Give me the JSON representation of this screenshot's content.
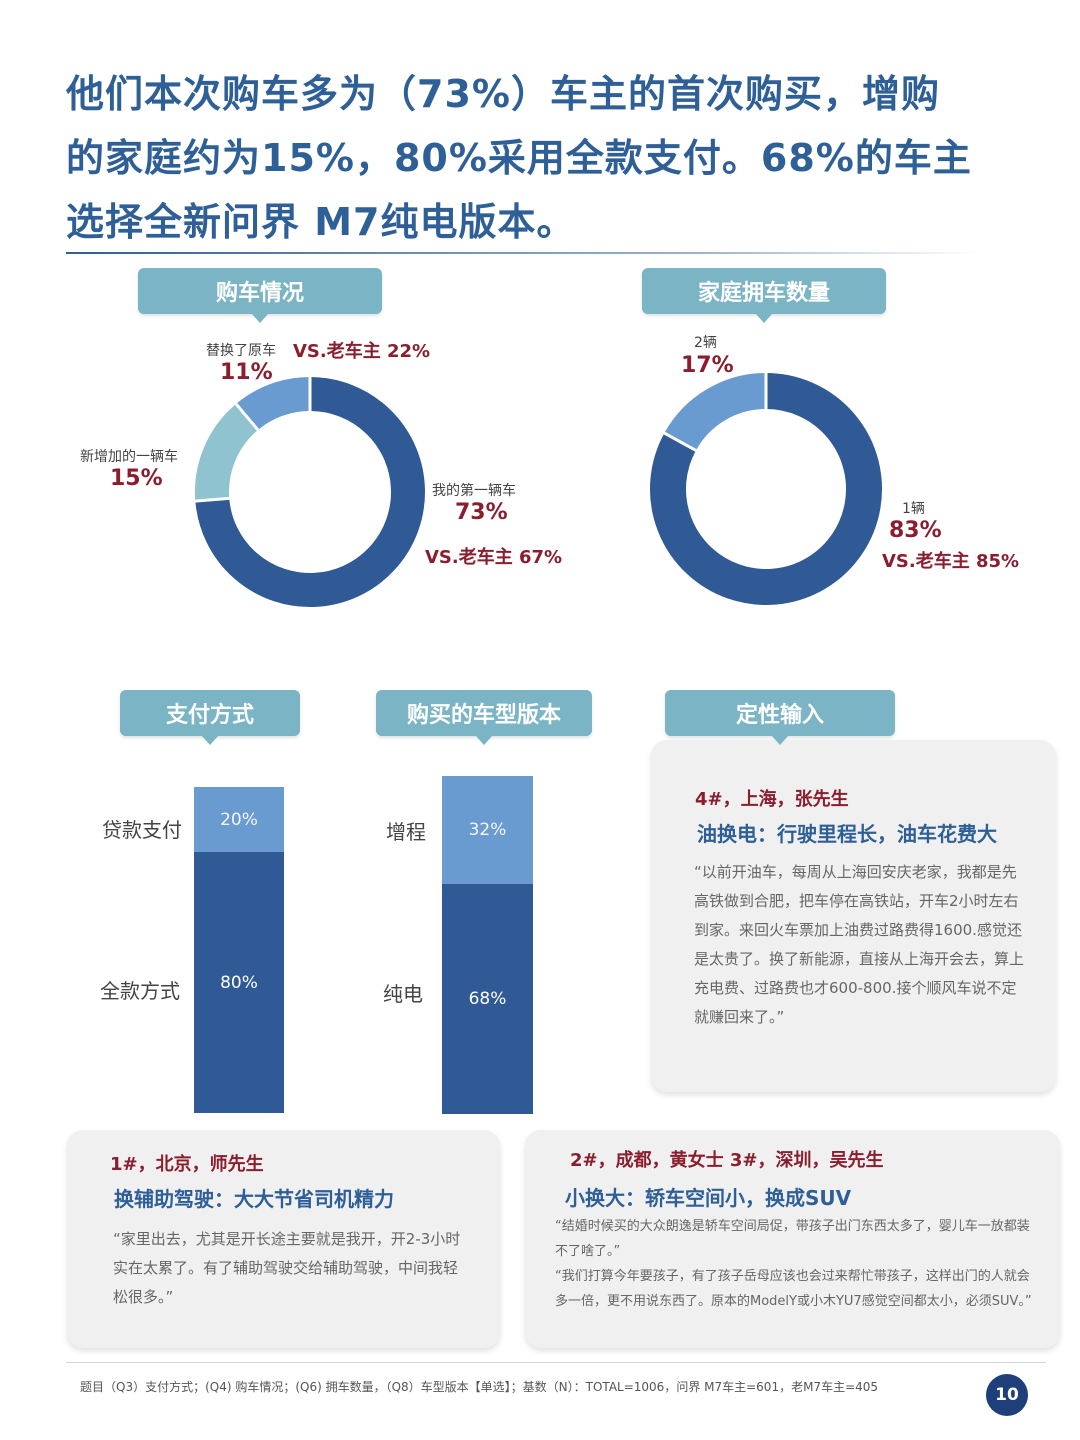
{
  "headline": {
    "line1": "他们本次购车多为（73%）车主的首次购买，增购",
    "line2": "的家庭约为15%，80%采用全款支付。68%的车主",
    "line3": "选择全新问界 M7纯电版本。"
  },
  "colors": {
    "dark_blue": "#2f5a96",
    "mid_blue": "#6a9bd0",
    "light_teal": "#8ec3cf",
    "accent_red": "#8a1d2e",
    "tab_teal": "#7ab4c5"
  },
  "sections": {
    "purchase": "购车情况",
    "household": "家庭拥车数量",
    "payment": "支付方式",
    "version": "购买的车型版本",
    "qualitative": "定性输入"
  },
  "chart_data": [
    {
      "type": "pie",
      "title": "购车情况",
      "slices": [
        {
          "label": "我的第一辆车",
          "value": 73,
          "display": "73%",
          "compare": "VS.老车主 67%",
          "color": "#2f5a96"
        },
        {
          "label": "新增加的一辆车",
          "value": 15,
          "display": "15%",
          "color": "#8ec3cf"
        },
        {
          "label": "替换了原车",
          "value": 11,
          "display": "11%",
          "compare": "VS.老车主 22%",
          "color": "#6a9bd0"
        }
      ]
    },
    {
      "type": "pie",
      "title": "家庭拥车数量",
      "slices": [
        {
          "label": "1辆",
          "value": 83,
          "display": "83%",
          "compare": "VS.老车主 85%",
          "color": "#2f5a96"
        },
        {
          "label": "2辆",
          "value": 17,
          "display": "17%",
          "color": "#6a9bd0"
        }
      ]
    },
    {
      "type": "bar",
      "title": "支付方式",
      "stacked": true,
      "categories": [
        "全款方式",
        "贷款支付"
      ],
      "values": [
        80,
        20
      ],
      "display": [
        "80%",
        "20%"
      ]
    },
    {
      "type": "bar",
      "title": "购买的车型版本",
      "stacked": true,
      "categories": [
        "纯电",
        "增程"
      ],
      "values": [
        68,
        32
      ],
      "display": [
        "68%",
        "32%"
      ]
    }
  ],
  "cards": {
    "shanghai": {
      "tag": "4#，上海，张先生",
      "headline": "油换电：行驶里程长，油车花费大",
      "quote": "“以前开油车，每周从上海回安庆老家，我都是先高铁做到合肥，把车停在高铁站，开车2小时左右到家。来回火车票加上油费过路费得1600.感觉还是太贵了。换了新能源，直接从上海开会去，算上充电费、过路费也才600-800.接个顺风车说不定就赚回来了。”"
    },
    "beijing": {
      "tag": "1#，北京，师先生",
      "headline": "换辅助驾驶：大大节省司机精力",
      "quote": "“家里出去，尤其是开长途主要就是我开，开2-3小时实在太累了。有了辅助驾驶交给辅助驾驶，中间我轻松很多。”"
    },
    "chengdu": {
      "tag": "2#，成都，黄女士    3#，深圳，吴先生",
      "headline": "小换大：轿车空间小，换成SUV",
      "quote1": "“结婚时候买的大众朗逸是轿车空间局促，带孩子出门东西太多了，婴儿车一放都装不了啥了。”",
      "quote2": "“我们打算今年要孩子，有了孩子岳母应该也会过来帮忙带孩子，这样出门的人就会多一倍，更不用说东西了。原本的ModelY或小木YU7感觉空间都太小，必须SUV。”"
    }
  },
  "footnote": "题目（Q3）支付方式；(Q4) 购车情况；(Q6) 拥车数量，（Q8）车型版本【单选】；基数（N）：TOTAL=1006，问界 M7车主=601，老M7车主=405",
  "page_number": "10"
}
